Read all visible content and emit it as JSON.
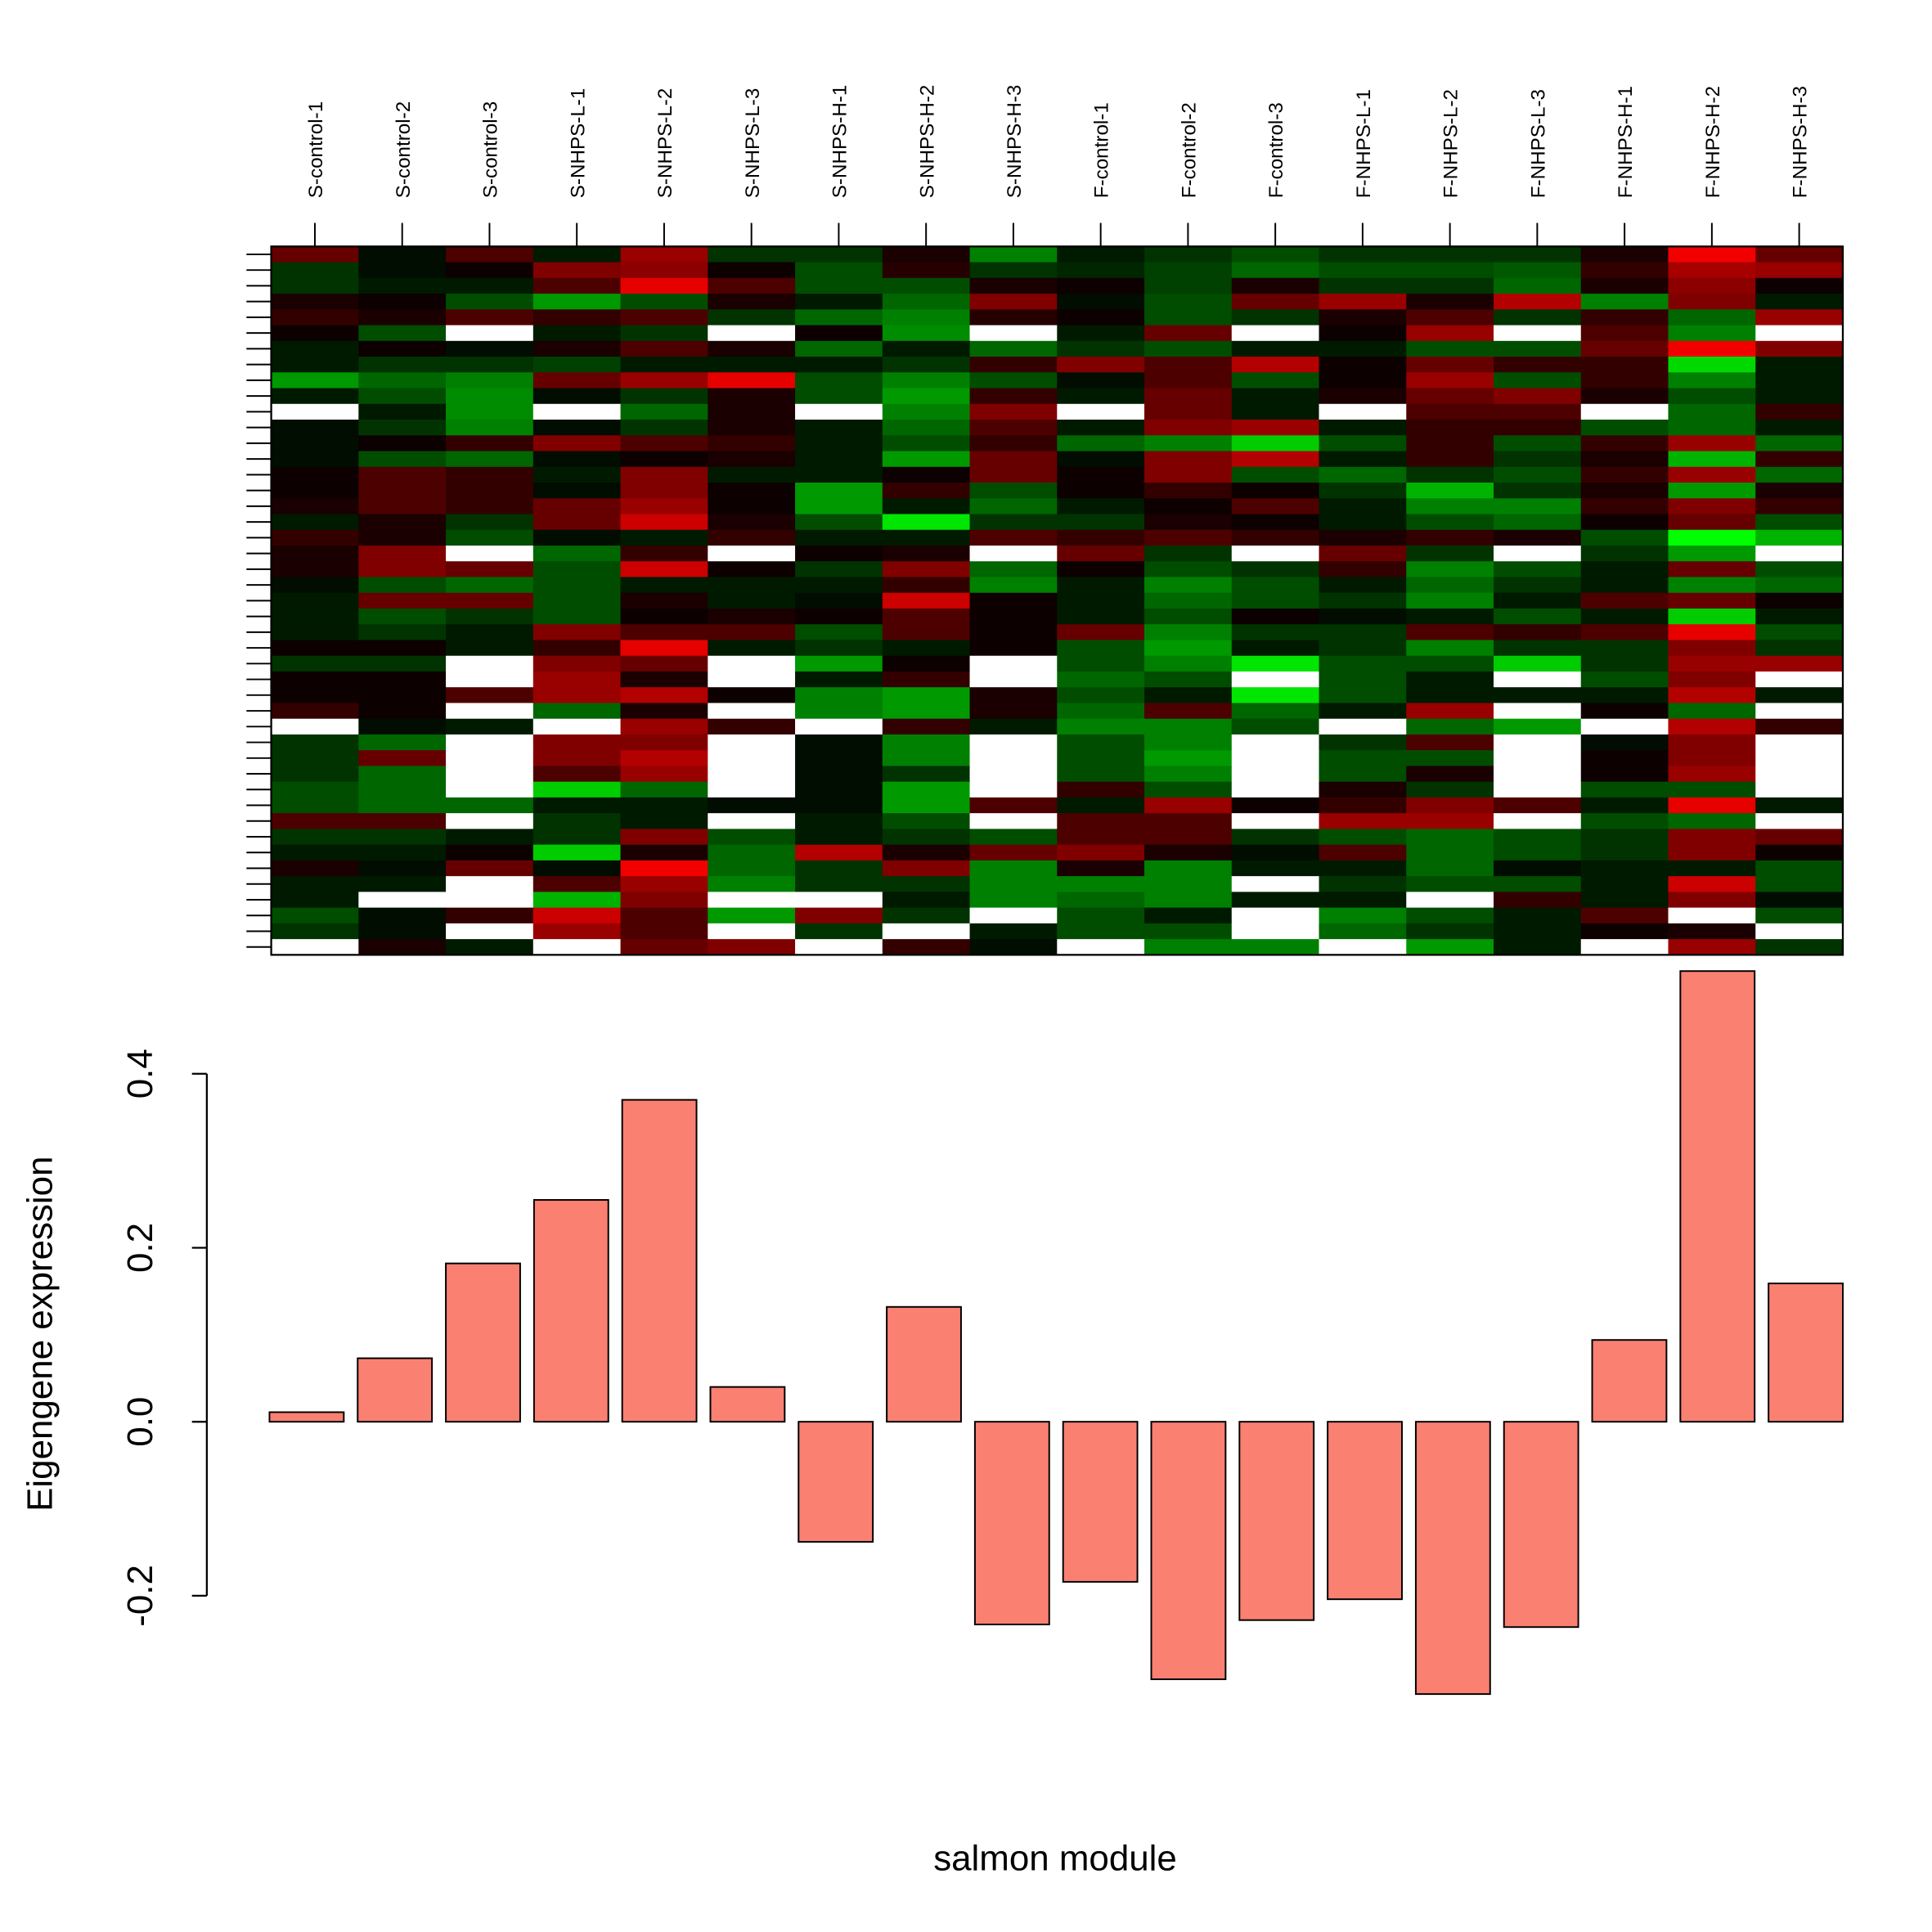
{
  "chart_data": [
    {
      "type": "heatmap",
      "categories": [
        "S-control-1",
        "S-control-2",
        "S-control-3",
        "S-NHPS-L-1",
        "S-NHPS-L-2",
        "S-NHPS-L-3",
        "S-NHPS-H-1",
        "S-NHPS-H-2",
        "S-NHPS-H-3",
        "F-control-1",
        "F-control-2",
        "F-control-3",
        "F-NHPS-L-1",
        "F-NHPS-L-2",
        "F-NHPS-L-3",
        "F-NHPS-H-1",
        "F-NHPS-H-2",
        "F-NHPS-H-3"
      ],
      "low_color": "#00ff00",
      "mid_color": "#000000",
      "high_color": "#ff0000",
      "missing_color": "#ffffff",
      "values": [
        [
          0.4,
          -0.05,
          0.3,
          -0.1,
          0.6,
          -0.2,
          -0.2,
          0.1,
          -0.5,
          -0.1,
          -0.2,
          -0.3,
          -0.2,
          -0.2,
          -0.2,
          0.1,
          0.95,
          0.4
        ],
        [
          -0.2,
          -0.05,
          0.05,
          0.5,
          0.55,
          0.05,
          -0.3,
          0.15,
          -0.2,
          -0.15,
          -0.25,
          -0.4,
          -0.3,
          -0.3,
          -0.35,
          0.2,
          0.65,
          0.6
        ],
        [
          -0.2,
          -0.1,
          -0.1,
          0.3,
          0.9,
          0.3,
          -0.3,
          -0.3,
          0.1,
          0.05,
          -0.25,
          0.1,
          -0.2,
          -0.2,
          -0.4,
          0.1,
          0.55,
          0.05
        ],
        [
          0.1,
          0.05,
          -0.3,
          -0.6,
          -0.3,
          0.1,
          -0.1,
          -0.4,
          0.5,
          -0.05,
          -0.3,
          0.4,
          0.6,
          0.1,
          0.7,
          -0.5,
          0.5,
          -0.1
        ],
        [
          0.2,
          0.1,
          0.3,
          0.2,
          0.3,
          -0.2,
          -0.4,
          -0.5,
          0.15,
          0.05,
          -0.3,
          -0.2,
          0.1,
          0.3,
          -0.2,
          0.2,
          -0.4,
          0.6
        ],
        [
          0.05,
          -0.3,
          null,
          -0.1,
          -0.2,
          null,
          0.05,
          -0.55,
          null,
          -0.1,
          0.4,
          null,
          0.05,
          0.6,
          null,
          0.3,
          -0.5,
          null
        ],
        [
          -0.1,
          0.05,
          -0.05,
          0.1,
          0.3,
          0.1,
          -0.4,
          -0.1,
          -0.4,
          -0.2,
          -0.3,
          -0.1,
          -0.1,
          -0.3,
          -0.3,
          0.4,
          0.95,
          0.5
        ],
        [
          -0.1,
          -0.2,
          -0.2,
          -0.25,
          -0.1,
          -0.1,
          -0.1,
          -0.2,
          0.2,
          0.5,
          0.3,
          0.7,
          0.05,
          0.4,
          0.2,
          0.2,
          -0.85,
          -0.1
        ],
        [
          -0.6,
          -0.4,
          -0.5,
          0.4,
          0.6,
          0.9,
          -0.3,
          -0.5,
          -0.3,
          -0.05,
          0.3,
          -0.3,
          0.05,
          0.6,
          -0.3,
          0.2,
          -0.5,
          -0.1
        ],
        [
          -0.1,
          -0.3,
          -0.55,
          -0.05,
          -0.2,
          0.1,
          -0.3,
          -0.6,
          0.2,
          -0.1,
          0.4,
          -0.1,
          0.1,
          0.4,
          0.5,
          0.1,
          -0.3,
          -0.1
        ],
        [
          null,
          -0.1,
          -0.55,
          null,
          -0.4,
          0.1,
          null,
          -0.5,
          0.5,
          null,
          0.4,
          -0.1,
          null,
          0.3,
          0.3,
          null,
          -0.4,
          0.2
        ],
        [
          -0.05,
          -0.2,
          -0.5,
          -0.05,
          -0.2,
          0.1,
          -0.1,
          -0.4,
          0.3,
          -0.1,
          0.5,
          0.6,
          -0.1,
          0.2,
          0.2,
          -0.3,
          -0.4,
          -0.1
        ],
        [
          -0.05,
          0.05,
          0.2,
          0.5,
          0.3,
          0.2,
          -0.1,
          -0.3,
          0.2,
          -0.4,
          -0.5,
          -0.8,
          -0.3,
          0.2,
          -0.3,
          0.2,
          0.6,
          -0.4
        ],
        [
          -0.05,
          -0.3,
          -0.4,
          -0.05,
          0.05,
          0.1,
          -0.1,
          -0.6,
          0.4,
          -0.05,
          0.5,
          0.7,
          -0.1,
          0.2,
          -0.2,
          0.1,
          -0.7,
          0.2
        ],
        [
          0.05,
          0.3,
          0.2,
          -0.1,
          0.5,
          -0.1,
          -0.1,
          0.05,
          0.4,
          0.05,
          0.5,
          -0.3,
          -0.4,
          -0.2,
          -0.3,
          0.2,
          0.6,
          -0.4
        ],
        [
          0.05,
          0.3,
          0.2,
          -0.05,
          0.5,
          0.05,
          -0.6,
          0.2,
          -0.3,
          0.05,
          0.2,
          0.05,
          -0.2,
          -0.7,
          -0.2,
          0.1,
          -0.6,
          0.1
        ],
        [
          0.1,
          0.3,
          0.2,
          0.4,
          0.6,
          0.05,
          -0.6,
          -0.1,
          -0.4,
          -0.1,
          0.05,
          0.3,
          -0.1,
          -0.5,
          -0.5,
          0.2,
          0.5,
          0.2
        ],
        [
          -0.1,
          0.1,
          -0.2,
          0.4,
          0.8,
          0.1,
          -0.3,
          -0.9,
          -0.2,
          -0.2,
          0.1,
          0.05,
          -0.1,
          -0.3,
          -0.4,
          0.05,
          0.4,
          -0.3
        ],
        [
          0.2,
          0.1,
          -0.3,
          -0.05,
          -0.1,
          0.2,
          -0.1,
          -0.1,
          0.3,
          0.2,
          0.3,
          0.2,
          0.1,
          0.2,
          0.1,
          -0.3,
          -1.0,
          -0.7
        ],
        [
          0.1,
          0.5,
          null,
          -0.4,
          0.2,
          null,
          0.05,
          0.1,
          null,
          0.4,
          -0.2,
          null,
          0.4,
          -0.2,
          null,
          -0.2,
          -0.6,
          null
        ],
        [
          0.1,
          0.5,
          0.4,
          -0.3,
          0.8,
          0.05,
          -0.2,
          0.5,
          -0.4,
          0.05,
          -0.3,
          -0.2,
          0.2,
          -0.5,
          -0.3,
          -0.1,
          0.4,
          -0.3
        ],
        [
          -0.05,
          -0.3,
          -0.4,
          -0.3,
          -0.1,
          -0.1,
          -0.1,
          0.2,
          -0.5,
          -0.1,
          -0.5,
          -0.3,
          -0.1,
          -0.4,
          -0.2,
          -0.1,
          -0.5,
          -0.4
        ],
        [
          -0.1,
          0.4,
          0.4,
          -0.3,
          0.1,
          -0.1,
          -0.05,
          0.8,
          0.05,
          -0.1,
          -0.4,
          -0.3,
          -0.2,
          -0.5,
          -0.1,
          0.3,
          0.4,
          0.05
        ],
        [
          -0.1,
          -0.3,
          -0.2,
          -0.3,
          0.05,
          0.1,
          0.05,
          0.3,
          0.05,
          -0.1,
          -0.3,
          0.05,
          -0.05,
          -0.1,
          -0.3,
          -0.1,
          -0.8,
          -0.1
        ],
        [
          -0.1,
          -0.2,
          -0.1,
          0.5,
          0.3,
          0.3,
          -0.3,
          0.3,
          0.05,
          0.4,
          -0.5,
          -0.2,
          -0.2,
          0.3,
          0.2,
          0.3,
          0.9,
          -0.3
        ],
        [
          0.05,
          0.05,
          -0.1,
          0.2,
          0.9,
          -0.1,
          -0.2,
          -0.1,
          0.05,
          -0.3,
          -0.6,
          -0.1,
          -0.2,
          -0.5,
          -0.2,
          -0.2,
          0.5,
          -0.2
        ],
        [
          -0.2,
          -0.2,
          null,
          0.5,
          0.4,
          null,
          -0.6,
          0.05,
          null,
          -0.3,
          -0.5,
          -0.9,
          -0.3,
          -0.3,
          -0.8,
          -0.2,
          0.6,
          0.6
        ],
        [
          0.05,
          0.05,
          null,
          0.6,
          0.1,
          null,
          -0.1,
          0.2,
          null,
          -0.4,
          -0.3,
          null,
          -0.3,
          -0.1,
          null,
          -0.3,
          0.5,
          null
        ],
        [
          0.05,
          0.05,
          0.3,
          0.6,
          0.7,
          0.05,
          -0.5,
          -0.6,
          0.1,
          -0.3,
          -0.1,
          -0.9,
          -0.3,
          -0.1,
          -0.1,
          -0.1,
          0.7,
          -0.1
        ],
        [
          0.2,
          0.05,
          null,
          -0.4,
          0.1,
          null,
          -0.5,
          -0.6,
          0.1,
          -0.4,
          0.3,
          -0.4,
          -0.1,
          0.6,
          null,
          0.05,
          -0.4,
          null
        ],
        [
          null,
          -0.05,
          -0.1,
          null,
          0.6,
          0.2,
          null,
          0.2,
          -0.1,
          -0.5,
          -0.5,
          -0.3,
          null,
          -0.4,
          -0.6,
          null,
          0.7,
          0.2
        ],
        [
          -0.2,
          -0.4,
          null,
          0.5,
          0.5,
          null,
          -0.05,
          -0.5,
          null,
          -0.3,
          -0.5,
          null,
          -0.2,
          0.3,
          null,
          -0.05,
          0.5,
          null
        ],
        [
          -0.2,
          0.4,
          null,
          0.5,
          0.7,
          null,
          -0.05,
          -0.5,
          null,
          -0.3,
          -0.6,
          null,
          -0.3,
          -0.3,
          null,
          0.05,
          0.5,
          null
        ],
        [
          -0.2,
          -0.4,
          null,
          0.3,
          0.6,
          null,
          -0.05,
          -0.2,
          null,
          -0.3,
          -0.5,
          null,
          -0.3,
          0.1,
          null,
          0.05,
          0.6,
          null
        ],
        [
          -0.3,
          -0.4,
          null,
          -0.8,
          -0.4,
          null,
          -0.05,
          -0.6,
          null,
          0.2,
          -0.3,
          null,
          0.1,
          -0.2,
          null,
          -0.3,
          -0.3,
          null
        ],
        [
          -0.3,
          -0.4,
          -0.4,
          -0.1,
          -0.1,
          -0.05,
          -0.05,
          -0.6,
          0.3,
          -0.1,
          0.6,
          0.05,
          0.2,
          0.5,
          0.3,
          -0.1,
          0.9,
          -0.1
        ],
        [
          0.3,
          0.3,
          null,
          -0.2,
          -0.1,
          null,
          -0.1,
          -0.3,
          null,
          0.3,
          0.3,
          null,
          0.6,
          0.6,
          null,
          -0.3,
          -0.4,
          null
        ],
        [
          -0.2,
          -0.2,
          -0.1,
          -0.2,
          0.5,
          -0.3,
          -0.1,
          -0.2,
          -0.3,
          0.3,
          0.3,
          -0.2,
          -0.3,
          -0.4,
          -0.3,
          -0.2,
          0.5,
          0.4
        ],
        [
          -0.1,
          -0.1,
          0.05,
          -0.8,
          0.1,
          -0.4,
          0.7,
          0.1,
          0.4,
          0.5,
          0.1,
          -0.05,
          0.3,
          -0.4,
          -0.3,
          -0.2,
          0.5,
          0.05
        ],
        [
          0.1,
          -0.05,
          0.4,
          -0.05,
          0.95,
          -0.4,
          -0.2,
          0.5,
          -0.5,
          0.1,
          -0.5,
          -0.1,
          -0.1,
          -0.4,
          -0.05,
          -0.1,
          -0.1,
          -0.3
        ],
        [
          -0.1,
          -0.1,
          null,
          0.3,
          0.6,
          -0.5,
          -0.2,
          -0.2,
          -0.5,
          -0.5,
          -0.5,
          null,
          -0.2,
          -0.3,
          -0.3,
          -0.1,
          0.8,
          -0.3
        ],
        [
          -0.1,
          null,
          null,
          -0.7,
          0.5,
          null,
          null,
          -0.1,
          -0.5,
          -0.4,
          -0.5,
          -0.1,
          -0.1,
          null,
          0.2,
          -0.1,
          0.5,
          -0.05
        ],
        [
          -0.3,
          -0.05,
          0.2,
          0.8,
          0.3,
          -0.6,
          0.5,
          -0.2,
          null,
          -0.3,
          -0.1,
          null,
          -0.5,
          -0.3,
          -0.1,
          0.3,
          null,
          -0.3
        ],
        [
          -0.2,
          -0.05,
          null,
          0.6,
          0.3,
          null,
          -0.2,
          null,
          -0.1,
          -0.3,
          -0.3,
          null,
          -0.4,
          -0.2,
          -0.1,
          0.05,
          0.1,
          null
        ],
        [
          null,
          0.1,
          -0.1,
          null,
          0.4,
          0.5,
          null,
          0.2,
          -0.05,
          null,
          -0.5,
          -0.5,
          null,
          -0.6,
          -0.1,
          null,
          0.6,
          -0.2
        ]
      ]
    },
    {
      "type": "bar",
      "xlabel": "salmon module",
      "ylabel": "Eigengene expression",
      "color": "#fa8072",
      "values": [
        0.011,
        0.073,
        0.182,
        0.255,
        0.37,
        0.04,
        -0.138,
        0.132,
        -0.233,
        -0.184,
        -0.296,
        -0.228,
        -0.204,
        -0.313,
        -0.236,
        0.094,
        0.518,
        0.159
      ],
      "ylim": [
        -0.33,
        0.54
      ],
      "yticks": [
        -0.2,
        {
          "value": 0,
          "label": "0.0"
        },
        0.2,
        0.4
      ]
    }
  ]
}
